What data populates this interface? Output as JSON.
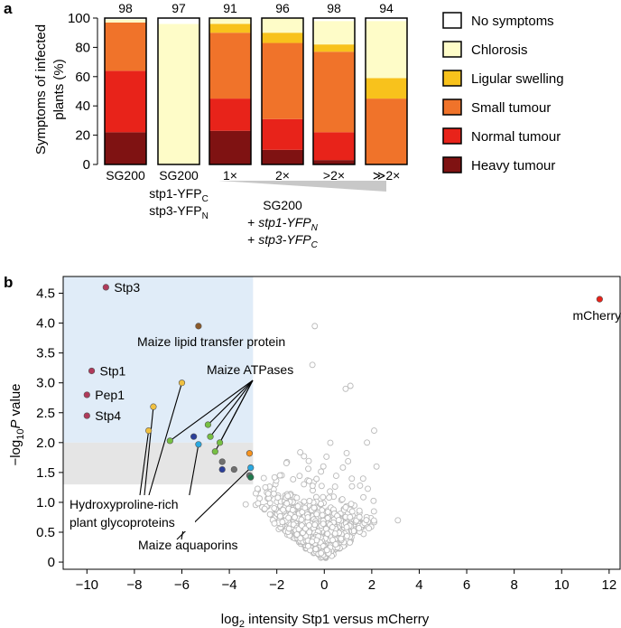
{
  "chart_data": [
    {
      "panel": "a",
      "type": "bar",
      "stacked": true,
      "ylabel_line1": "Symptoms of infected",
      "ylabel_line2": "plants (%)",
      "ylim": [
        0,
        100
      ],
      "yticks": [
        "0",
        "20",
        "40",
        "60",
        "80",
        "100"
      ],
      "categories": [
        "SG200",
        "SG200",
        "1×",
        "2×",
        ">2×",
        "≫2×"
      ],
      "n_labels": [
        "98",
        "97",
        "91",
        "96",
        "98",
        "94"
      ],
      "category_sublabel": {
        "line1_main": "stp1-YFP",
        "line1_sub": "C",
        "line2_main": "stp3-YFP",
        "line2_sub": "N"
      },
      "group_label": {
        "line1": "SG200",
        "line2_prefix": "+ ",
        "line2_main": "stp1-YFP",
        "line2_sub": "N",
        "line3_prefix": "+ ",
        "line3_main": "stp3-YFP",
        "line3_sub": "C"
      },
      "series": [
        {
          "name": "Heavy tumour",
          "color": "#7f1212",
          "values": [
            22,
            0,
            23,
            10,
            3,
            0
          ]
        },
        {
          "name": "Normal tumour",
          "color": "#e8231a",
          "values": [
            42,
            0,
            22,
            21,
            19,
            0
          ]
        },
        {
          "name": "Small tumour",
          "color": "#f0732a",
          "values": [
            33,
            0,
            45,
            52,
            55,
            45
          ]
        },
        {
          "name": "Ligular swelling",
          "color": "#f8c21c",
          "values": [
            0,
            0,
            6,
            7,
            5,
            14
          ]
        },
        {
          "name": "Chlorosis",
          "color": "#fefcc8",
          "values": [
            2,
            96,
            4,
            10,
            16,
            39
          ]
        },
        {
          "name": "No symptoms",
          "color": "#ffffff",
          "values": [
            1,
            4,
            0,
            0,
            2,
            2
          ]
        }
      ]
    },
    {
      "panel": "b",
      "type": "scatter",
      "xlabel_pre": "log",
      "xlabel_sub": "2",
      "xlabel_post": " intensity Stp1 versus mCherry",
      "ylabel_pre": "−log",
      "ylabel_sub": "10",
      "ylabel_mid": "P",
      "ylabel_post": " value",
      "xlim": [
        -11,
        12.5
      ],
      "ylim": [
        -0.12,
        4.78
      ],
      "xticks": [
        "−10",
        "−8",
        "−6",
        "−4",
        "−2",
        "0",
        "2",
        "4",
        "6",
        "8",
        "10",
        "12"
      ],
      "yticks": [
        "0",
        "0.5",
        "1.0",
        "1.5",
        "2.0",
        "2.5",
        "3.0",
        "3.5",
        "4.0",
        "4.5"
      ],
      "significant_region": {
        "x_max": -3,
        "y_min_strong": 2.0,
        "y_min_weak": 1.3
      },
      "labeled_points": [
        {
          "label": "Stp3",
          "x": -9.2,
          "y": 4.6,
          "color": "#b03a5b"
        },
        {
          "label": "Stp1",
          "x": -9.8,
          "y": 3.2,
          "color": "#b03a5b"
        },
        {
          "label": "Pep1",
          "x": -10.0,
          "y": 2.8,
          "color": "#b03a5b"
        },
        {
          "label": "Stp4",
          "x": -10.0,
          "y": 2.45,
          "color": "#b03a5b"
        },
        {
          "label": "mCherry",
          "x": 11.6,
          "y": 4.4,
          "color": "#e8231a"
        },
        {
          "label": "Maize lipid transfer protein",
          "x": -5.3,
          "y": 3.95,
          "color": "#8b5a2b"
        }
      ],
      "group_labels": {
        "atpases": "Maize ATPases",
        "hrgp_line1": "Hydroxyproline-rich",
        "hrgp_line2": "plant glycoproteins",
        "aquaporins": "Maize aquaporins"
      },
      "colored_points": [
        {
          "x": -7.4,
          "y": 2.2,
          "color": "#f0c040"
        },
        {
          "x": -7.2,
          "y": 2.6,
          "color": "#f0c040"
        },
        {
          "x": -6.0,
          "y": 3.0,
          "color": "#f0c040"
        },
        {
          "x": -6.5,
          "y": 2.03,
          "color": "#77c043"
        },
        {
          "x": -4.9,
          "y": 2.3,
          "color": "#77c043"
        },
        {
          "x": -4.8,
          "y": 2.1,
          "color": "#77c043"
        },
        {
          "x": -4.4,
          "y": 2.0,
          "color": "#77c043"
        },
        {
          "x": -4.6,
          "y": 1.85,
          "color": "#77c043"
        },
        {
          "x": -5.5,
          "y": 2.1,
          "color": "#2b3f9a"
        },
        {
          "x": -4.3,
          "y": 1.55,
          "color": "#2b3f9a"
        },
        {
          "x": -5.3,
          "y": 1.97,
          "color": "#29a8e0"
        },
        {
          "x": -3.1,
          "y": 1.58,
          "color": "#29a8e0"
        },
        {
          "x": -3.15,
          "y": 1.82,
          "color": "#f7931e"
        },
        {
          "x": -4.3,
          "y": 1.68,
          "color": "#707070"
        },
        {
          "x": -3.8,
          "y": 1.55,
          "color": "#707070"
        },
        {
          "x": -3.15,
          "y": 1.45,
          "color": "#707070"
        },
        {
          "x": -3.1,
          "y": 1.42,
          "color": "#1f7a4d"
        }
      ]
    }
  ],
  "panel_labels": {
    "a": "a",
    "b": "b"
  }
}
